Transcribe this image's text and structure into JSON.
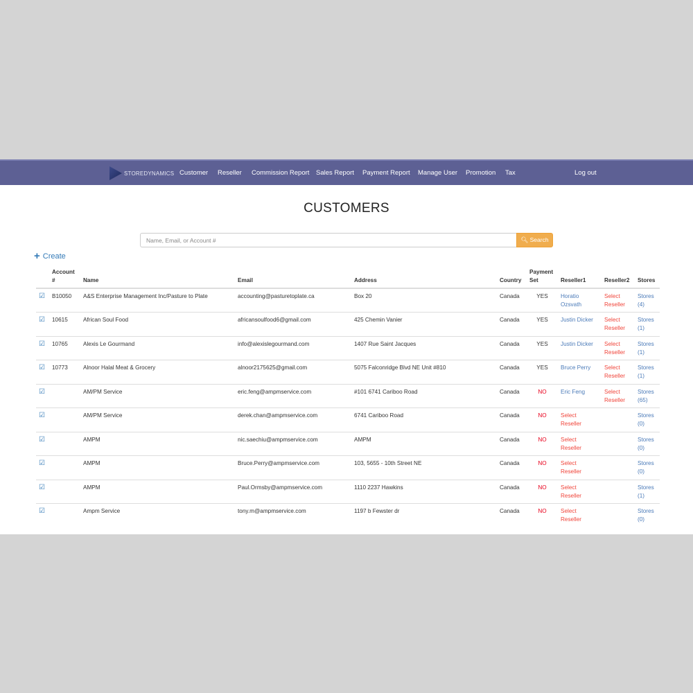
{
  "nav": {
    "brand": "STOREDYNAMICS",
    "items": [
      "Customer",
      "Reseller",
      "Commission Report",
      "Sales Report",
      "Payment Report",
      "Manage User",
      "Promotion",
      "Tax"
    ],
    "logout": "Log out",
    "color": "#5d6094"
  },
  "title": "CUSTOMERS",
  "search": {
    "placeholder": "Name, Email, or Account #",
    "value": "",
    "button": "Search"
  },
  "create": "Create",
  "table": {
    "headers": [
      "",
      "Account #",
      "Name",
      "Email",
      "Address",
      "Country",
      "Payment Set",
      "Reseller1",
      "Reseller2",
      "Stores"
    ],
    "rows": [
      {
        "account": "B10050",
        "name": "A&S Enterprise Management Inc/Pasture to Plate",
        "email": "accounting@pasturetoplate.ca",
        "address": "Box 20",
        "country": "Canada",
        "payment": "YES",
        "reseller1": "Horatio Ozsvath",
        "reseller2": "Select Reseller",
        "stores": "Stores (4)"
      },
      {
        "account": "10615",
        "name": "African Soul Food",
        "email": "africansoulfood6@gmail.com",
        "address": "425 Chemin Vanier",
        "country": "Canada",
        "payment": "YES",
        "reseller1": "Justin Dicker",
        "reseller2": "Select Reseller",
        "stores": "Stores (1)"
      },
      {
        "account": "10765",
        "name": "Alexis Le Gourmand",
        "email": "info@alexislegourmand.com",
        "address": "1407 Rue Saint Jacques",
        "country": "Canada",
        "payment": "YES",
        "reseller1": "Justin Dicker",
        "reseller2": "Select Reseller",
        "stores": "Stores (1)"
      },
      {
        "account": "10773",
        "name": "Alnoor Halal Meat & Grocery",
        "email": "alnoor2175625@gmail.com",
        "address": "5075 Falconridge Blvd NE Unit #810",
        "country": "Canada",
        "payment": "YES",
        "reseller1": "Bruce Perry",
        "reseller2": "Select Reseller",
        "stores": "Stores (1)"
      },
      {
        "account": "",
        "name": "AM/PM Service",
        "email": "eric.feng@ampmservice.com",
        "address": "#101 6741 Cariboo Road",
        "country": "Canada",
        "payment": "NO",
        "reseller1": "Eric Feng",
        "reseller2": "Select Reseller",
        "stores": "Stores (65)"
      },
      {
        "account": "",
        "name": "AM/PM Service",
        "email": "derek.chan@ampmservice.com",
        "address": "6741 Cariboo Road",
        "country": "Canada",
        "payment": "NO",
        "reseller1": "Select Reseller",
        "reseller2": "",
        "stores": "Stores (0)"
      },
      {
        "account": "",
        "name": "AMPM",
        "email": "nic.saechiu@ampmservice.com",
        "address": "AMPM",
        "country": "Canada",
        "payment": "NO",
        "reseller1": "Select Reseller",
        "reseller2": "",
        "stores": "Stores (0)"
      },
      {
        "account": "",
        "name": "AMPM",
        "email": "Bruce.Perry@ampmservice.com",
        "address": "103, 5655 - 10th Street NE",
        "country": "Canada",
        "payment": "NO",
        "reseller1": "Select Reseller",
        "reseller2": "",
        "stores": "Stores (0)"
      },
      {
        "account": "",
        "name": "AMPM",
        "email": "Paul.Ormsby@ampmservice.com",
        "address": "1110 2237 Hawkins",
        "country": "Canada",
        "payment": "NO",
        "reseller1": "Select Reseller",
        "reseller2": "",
        "stores": "Stores (1)"
      },
      {
        "account": "",
        "name": "Ampm Service",
        "email": "tony.m@ampmservice.com",
        "address": "1197 b Fewster dr",
        "country": "Canada",
        "payment": "NO",
        "reseller1": "Select Reseller",
        "reseller2": "",
        "stores": "Stores (0)"
      }
    ]
  }
}
